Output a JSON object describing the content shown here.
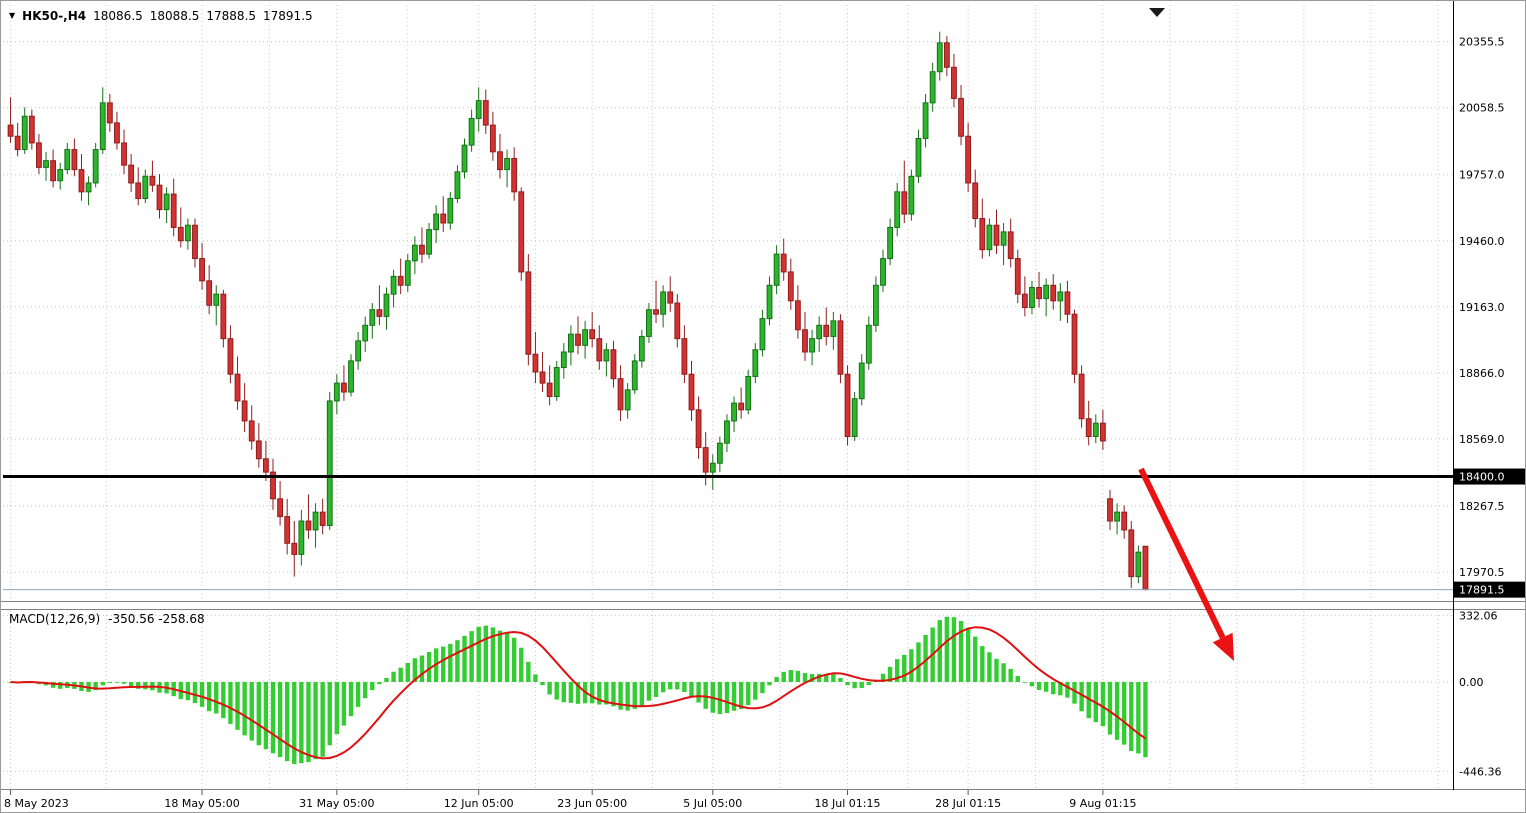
{
  "header": {
    "title": "HK50-,H4",
    "open": "18086.5",
    "high": "18088.5",
    "low": "17888.5",
    "close": "17891.5"
  },
  "indicator_label": {
    "name": "MACD(12,26,9)",
    "values": "-350.56 -258.68"
  },
  "price_axis": {
    "ticks": [
      "20355.5",
      "20058.5",
      "19757.0",
      "19460.0",
      "19163.0",
      "18866.0",
      "18569.0",
      "18267.5",
      "17970.5"
    ]
  },
  "macd_axis": {
    "ticks": [
      "332.06",
      "0.00",
      "-446.36"
    ]
  },
  "chart_data": {
    "type": "candlestick",
    "symbol": "HK50-",
    "timeframe": "H4",
    "price_ylim": [
      17845,
      20520
    ],
    "price_grid_values": [
      20355.5,
      20058.5,
      19757.0,
      19460.0,
      19163.0,
      18866.0,
      18569.0,
      18267.5,
      17970.5
    ],
    "time_tick_indices": [
      0,
      27,
      46,
      66,
      82,
      99,
      118,
      135,
      154
    ],
    "time_tick_labels": [
      "8 May 2023",
      "18 May 05:00",
      "31 May 05:00",
      "12 Jun 05:00",
      "23 Jun 05:00",
      "5 Jul 05:00",
      "18 Jul 01:15",
      "28 Jul 01:15",
      "9 Aug 01:15"
    ],
    "hline": {
      "price": 18400.0,
      "label": "18400.0"
    },
    "last_price": {
      "price": 17891.5,
      "label": "17891.5"
    },
    "annotations": [
      {
        "type": "arrow",
        "from": [
          1140,
          468
        ],
        "to": [
          1233,
          660
        ]
      }
    ],
    "indicator": {
      "type": "MACD",
      "fast": 12,
      "slow": 26,
      "signal": 9,
      "current_macd": -350.56,
      "current_signal": -258.68,
      "axis_ticks": [
        332.06,
        0.0,
        -446.36
      ]
    },
    "candles": [
      [
        19980,
        20105,
        19900,
        19930
      ],
      [
        19930,
        19990,
        19840,
        19870
      ],
      [
        19870,
        20060,
        19850,
        20020
      ],
      [
        20020,
        20050,
        19870,
        19900
      ],
      [
        19900,
        19940,
        19760,
        19790
      ],
      [
        19790,
        19860,
        19730,
        19820
      ],
      [
        19820,
        19870,
        19700,
        19730
      ],
      [
        19730,
        19810,
        19690,
        19780
      ],
      [
        19780,
        19900,
        19760,
        19870
      ],
      [
        19870,
        19920,
        19750,
        19780
      ],
      [
        19780,
        19850,
        19640,
        19680
      ],
      [
        19680,
        19750,
        19620,
        19720
      ],
      [
        19720,
        19900,
        19700,
        19870
      ],
      [
        19870,
        20150,
        19850,
        20080
      ],
      [
        20080,
        20120,
        19950,
        19990
      ],
      [
        19990,
        20040,
        19870,
        19900
      ],
      [
        19900,
        19960,
        19760,
        19800
      ],
      [
        19800,
        19850,
        19680,
        19720
      ],
      [
        19720,
        19790,
        19620,
        19650
      ],
      [
        19650,
        19780,
        19630,
        19750
      ],
      [
        19750,
        19820,
        19680,
        19710
      ],
      [
        19710,
        19760,
        19560,
        19600
      ],
      [
        19600,
        19700,
        19540,
        19670
      ],
      [
        19670,
        19740,
        19480,
        19520
      ],
      [
        19520,
        19610,
        19430,
        19460
      ],
      [
        19460,
        19560,
        19420,
        19530
      ],
      [
        19530,
        19560,
        19340,
        19380
      ],
      [
        19380,
        19450,
        19240,
        19280
      ],
      [
        19280,
        19350,
        19130,
        19170
      ],
      [
        19170,
        19260,
        19080,
        19220
      ],
      [
        19220,
        19240,
        18980,
        19020
      ],
      [
        19020,
        19080,
        18820,
        18860
      ],
      [
        18860,
        18940,
        18700,
        18740
      ],
      [
        18740,
        18820,
        18600,
        18650
      ],
      [
        18650,
        18720,
        18520,
        18560
      ],
      [
        18560,
        18640,
        18440,
        18480
      ],
      [
        18480,
        18560,
        18380,
        18420
      ],
      [
        18420,
        18480,
        18250,
        18300
      ],
      [
        18300,
        18380,
        18180,
        18220
      ],
      [
        18220,
        18300,
        18050,
        18100
      ],
      [
        18100,
        18200,
        17950,
        18050
      ],
      [
        18050,
        18250,
        18000,
        18200
      ],
      [
        18200,
        18320,
        18120,
        18160
      ],
      [
        18160,
        18280,
        18080,
        18240
      ],
      [
        18240,
        18300,
        18140,
        18180
      ],
      [
        18180,
        18780,
        18160,
        18740
      ],
      [
        18740,
        18860,
        18680,
        18820
      ],
      [
        18820,
        18900,
        18740,
        18780
      ],
      [
        18780,
        18950,
        18760,
        18920
      ],
      [
        18920,
        19050,
        18880,
        19010
      ],
      [
        19010,
        19120,
        18960,
        19080
      ],
      [
        19080,
        19180,
        19020,
        19150
      ],
      [
        19150,
        19260,
        19080,
        19120
      ],
      [
        19120,
        19250,
        19060,
        19220
      ],
      [
        19220,
        19330,
        19160,
        19300
      ],
      [
        19300,
        19380,
        19220,
        19260
      ],
      [
        19260,
        19400,
        19230,
        19370
      ],
      [
        19370,
        19480,
        19310,
        19440
      ],
      [
        19440,
        19520,
        19360,
        19400
      ],
      [
        19400,
        19540,
        19380,
        19510
      ],
      [
        19510,
        19620,
        19450,
        19580
      ],
      [
        19580,
        19660,
        19500,
        19540
      ],
      [
        19540,
        19680,
        19510,
        19650
      ],
      [
        19650,
        19800,
        19630,
        19770
      ],
      [
        19770,
        19920,
        19740,
        19890
      ],
      [
        19890,
        20050,
        19860,
        20010
      ],
      [
        20010,
        20150,
        19950,
        20090
      ],
      [
        20090,
        20140,
        19940,
        19980
      ],
      [
        19980,
        20040,
        19820,
        19860
      ],
      [
        19860,
        19940,
        19740,
        19780
      ],
      [
        19780,
        19870,
        19700,
        19830
      ],
      [
        19830,
        19880,
        19640,
        19680
      ],
      [
        19680,
        19700,
        19280,
        19320
      ],
      [
        19320,
        19400,
        18900,
        18950
      ],
      [
        18950,
        19050,
        18820,
        18870
      ],
      [
        18870,
        18960,
        18780,
        18820
      ],
      [
        18820,
        18900,
        18720,
        18760
      ],
      [
        18760,
        18920,
        18740,
        18890
      ],
      [
        18890,
        19000,
        18840,
        18960
      ],
      [
        18960,
        19080,
        18900,
        19040
      ],
      [
        19040,
        19120,
        18950,
        18990
      ],
      [
        18990,
        19100,
        18930,
        19060
      ],
      [
        19060,
        19140,
        18980,
        19020
      ],
      [
        19020,
        19080,
        18880,
        18920
      ],
      [
        18920,
        19000,
        18850,
        18970
      ],
      [
        18970,
        19010,
        18800,
        18840
      ],
      [
        18840,
        18900,
        18650,
        18700
      ],
      [
        18700,
        18820,
        18660,
        18790
      ],
      [
        18790,
        18950,
        18770,
        18920
      ],
      [
        18920,
        19060,
        18890,
        19030
      ],
      [
        19030,
        19180,
        19000,
        19150
      ],
      [
        19150,
        19280,
        19090,
        19130
      ],
      [
        19130,
        19260,
        19070,
        19230
      ],
      [
        19230,
        19300,
        19140,
        19180
      ],
      [
        19180,
        19220,
        18980,
        19020
      ],
      [
        19020,
        19080,
        18820,
        18860
      ],
      [
        18860,
        18920,
        18650,
        18700
      ],
      [
        18700,
        18760,
        18480,
        18530
      ],
      [
        18530,
        18600,
        18360,
        18420
      ],
      [
        18420,
        18500,
        18340,
        18460
      ],
      [
        18460,
        18580,
        18420,
        18550
      ],
      [
        18550,
        18680,
        18510,
        18650
      ],
      [
        18650,
        18760,
        18600,
        18730
      ],
      [
        18730,
        18800,
        18660,
        18700
      ],
      [
        18700,
        18880,
        18680,
        18850
      ],
      [
        18850,
        19000,
        18820,
        18970
      ],
      [
        18970,
        19150,
        18940,
        19110
      ],
      [
        19110,
        19300,
        19080,
        19260
      ],
      [
        19260,
        19440,
        19220,
        19400
      ],
      [
        19400,
        19470,
        19280,
        19320
      ],
      [
        19320,
        19380,
        19150,
        19190
      ],
      [
        19190,
        19260,
        19020,
        19060
      ],
      [
        19060,
        19140,
        18920,
        18960
      ],
      [
        18960,
        19060,
        18900,
        19020
      ],
      [
        19020,
        19120,
        18960,
        19080
      ],
      [
        19080,
        19160,
        18990,
        19030
      ],
      [
        19030,
        19140,
        18970,
        19100
      ],
      [
        19100,
        19130,
        18820,
        18860
      ],
      [
        18860,
        18900,
        18540,
        18580
      ],
      [
        18580,
        18780,
        18560,
        18750
      ],
      [
        18750,
        18950,
        18720,
        18910
      ],
      [
        18910,
        19120,
        18880,
        19080
      ],
      [
        19080,
        19300,
        19050,
        19260
      ],
      [
        19260,
        19420,
        19230,
        19380
      ],
      [
        19380,
        19560,
        19350,
        19520
      ],
      [
        19520,
        19720,
        19480,
        19680
      ],
      [
        19680,
        19820,
        19540,
        19580
      ],
      [
        19580,
        19780,
        19550,
        19750
      ],
      [
        19750,
        19960,
        19720,
        19920
      ],
      [
        19920,
        20120,
        19880,
        20080
      ],
      [
        20080,
        20260,
        20040,
        20220
      ],
      [
        20220,
        20400,
        20180,
        20350
      ],
      [
        20350,
        20380,
        20200,
        20240
      ],
      [
        20240,
        20300,
        20060,
        20100
      ],
      [
        20100,
        20160,
        19890,
        19930
      ],
      [
        19930,
        19990,
        19680,
        19720
      ],
      [
        19720,
        19780,
        19520,
        19560
      ],
      [
        19560,
        19650,
        19380,
        19420
      ],
      [
        19420,
        19560,
        19390,
        19530
      ],
      [
        19530,
        19600,
        19400,
        19440
      ],
      [
        19440,
        19540,
        19350,
        19500
      ],
      [
        19500,
        19560,
        19340,
        19380
      ],
      [
        19380,
        19420,
        19180,
        19220
      ],
      [
        19220,
        19300,
        19120,
        19160
      ],
      [
        19160,
        19280,
        19130,
        19250
      ],
      [
        19250,
        19320,
        19160,
        19200
      ],
      [
        19200,
        19290,
        19120,
        19260
      ],
      [
        19260,
        19310,
        19150,
        19190
      ],
      [
        19190,
        19270,
        19100,
        19230
      ],
      [
        19230,
        19280,
        19090,
        19130
      ],
      [
        19130,
        19150,
        18820,
        18860
      ],
      [
        18860,
        18900,
        18620,
        18660
      ],
      [
        18660,
        18740,
        18540,
        18580
      ],
      [
        18580,
        18680,
        18550,
        18640
      ],
      [
        18640,
        18700,
        18520,
        18560
      ],
      [
        18300,
        18340,
        18160,
        18200
      ],
      [
        18200,
        18280,
        18140,
        18240
      ],
      [
        18240,
        18270,
        18120,
        18160
      ],
      [
        18160,
        18200,
        17900,
        17950
      ],
      [
        17950,
        18090,
        17920,
        18060
      ],
      [
        18086.5,
        18088.5,
        17888.5,
        17891.5
      ]
    ]
  },
  "colors": {
    "up": "#2db52d",
    "up_border": "#157015",
    "down": "#d23232",
    "down_border": "#8f1d1d",
    "macd_hist": "#33cc33",
    "macd_signal": "#e01010",
    "grid": "#c6c6c6",
    "hline": "#000000",
    "highlight_bg": "#000000",
    "highlight_text": "#ffffff",
    "arrow": "#ea1212",
    "axis_text": "#000000"
  }
}
